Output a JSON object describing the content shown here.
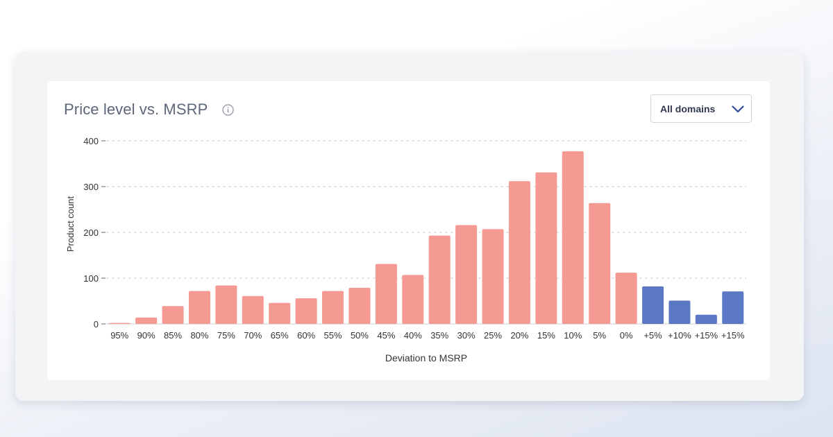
{
  "card": {
    "title": "Price level vs. MSRP",
    "info_icon": "info-icon"
  },
  "filter": {
    "selected": "All domains",
    "icon": "chevron-down-icon"
  },
  "colors": {
    "below_msrp": "#f59a92",
    "above_msrp": "#5b78c4",
    "grid": "#cccccc",
    "axis_text": "#333333"
  },
  "chart_data": {
    "type": "bar",
    "title": "",
    "xlabel": "Deviation to MSRP",
    "ylabel": "Product count",
    "ylim": [
      0,
      400
    ],
    "yticks": [
      0,
      100,
      200,
      300,
      400
    ],
    "grid": "horizontal dashed",
    "categories": [
      "95%",
      "90%",
      "85%",
      "80%",
      "75%",
      "70%",
      "65%",
      "60%",
      "55%",
      "50%",
      "45%",
      "40%",
      "35%",
      "30%",
      "25%",
      "20%",
      "15%",
      "10%",
      "5%",
      "0%",
      "+5%",
      "+10%",
      "+15%",
      "+15%"
    ],
    "values": [
      2,
      14,
      39,
      72,
      84,
      61,
      46,
      56,
      72,
      79,
      131,
      107,
      193,
      216,
      207,
      312,
      331,
      377,
      264,
      112,
      82,
      51,
      20,
      71
    ],
    "groups": [
      "below",
      "below",
      "below",
      "below",
      "below",
      "below",
      "below",
      "below",
      "below",
      "below",
      "below",
      "below",
      "below",
      "below",
      "below",
      "below",
      "below",
      "below",
      "below",
      "below",
      "above",
      "above",
      "above",
      "above"
    ]
  }
}
